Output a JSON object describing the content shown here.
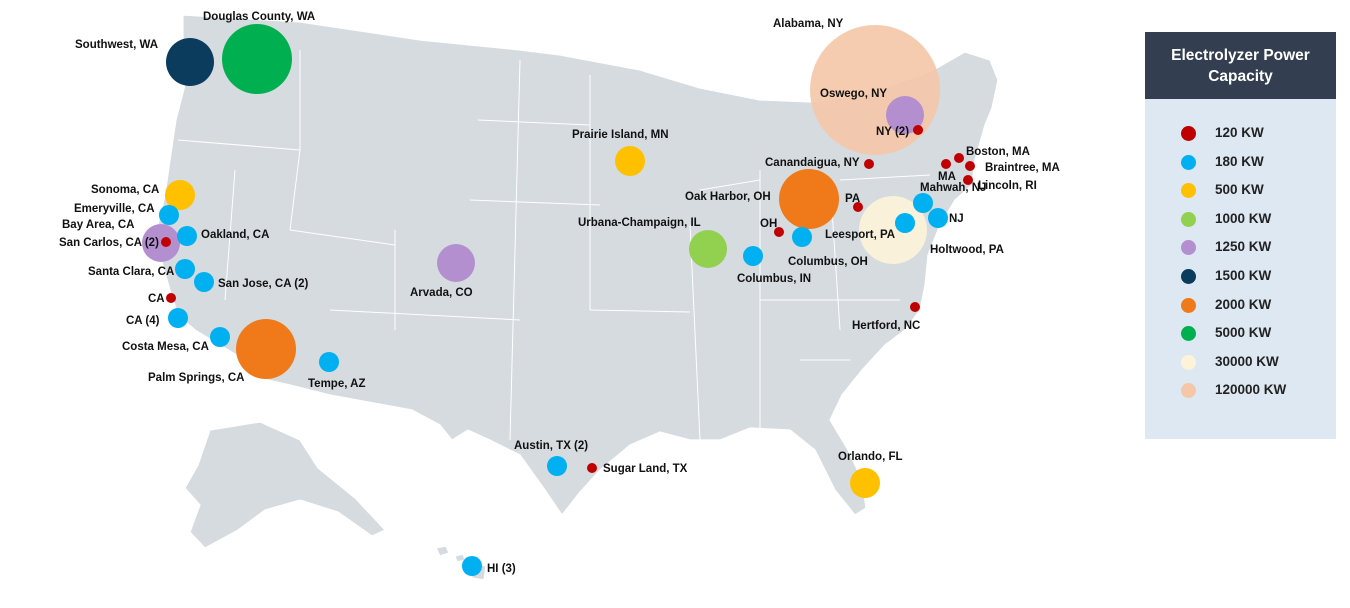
{
  "legend": {
    "title": "Electrolyzer Power Capacity",
    "items": [
      {
        "label": "120 KW",
        "color": "#c00000"
      },
      {
        "label": "180 KW",
        "color": "#00b0f0"
      },
      {
        "label": "500 KW",
        "color": "#ffc000"
      },
      {
        "label": "1000 KW",
        "color": "#92d050"
      },
      {
        "label": "1250 KW",
        "color": "#b48fd0"
      },
      {
        "label": "1500 KW",
        "color": "#0b3c5d"
      },
      {
        "label": "2000 KW",
        "color": "#f07a1a"
      },
      {
        "label": "5000 KW",
        "color": "#00b050"
      },
      {
        "label": "30000 KW",
        "color": "#fdf3d9"
      },
      {
        "label": "120000 KW",
        "color": "#f5c7a8"
      }
    ]
  },
  "sites": [
    {
      "label": "Douglas County, WA",
      "capacity_kw": 5000
    },
    {
      "label": "Southwest, WA",
      "capacity_kw": 1500
    },
    {
      "label": "Alabama, NY",
      "capacity_kw": 120000
    },
    {
      "label": "Oswego, NY",
      "capacity_kw": 1250
    },
    {
      "label": "NY (2)",
      "capacity_kw": 120
    },
    {
      "label": "Boston, MA",
      "capacity_kw": 120
    },
    {
      "label": "Braintree, MA",
      "capacity_kw": 120
    },
    {
      "label": "MA",
      "capacity_kw": 120
    },
    {
      "label": "Lincoln, RI",
      "capacity_kw": 120
    },
    {
      "label": "Canandaigua, NY",
      "capacity_kw": 120
    },
    {
      "label": "Prairie Island, MN",
      "capacity_kw": 500
    },
    {
      "label": "Oak Harbor, OH",
      "capacity_kw": 2000
    },
    {
      "label": "PA",
      "capacity_kw": 120
    },
    {
      "label": "Mahwah, NJ",
      "capacity_kw": 180
    },
    {
      "label": "NJ",
      "capacity_kw": 180
    },
    {
      "label": "Leesport, PA",
      "capacity_kw": 180
    },
    {
      "label": "Holtwood, PA",
      "capacity_kw": 30000
    },
    {
      "label": "Urbana-Champaign, IL",
      "capacity_kw": 1000
    },
    {
      "label": "OH",
      "capacity_kw": 120
    },
    {
      "label": "Columbus, OH",
      "capacity_kw": 180
    },
    {
      "label": "Columbus, IN",
      "capacity_kw": 180
    },
    {
      "label": "Hertford, NC",
      "capacity_kw": 120
    },
    {
      "label": "Sonoma, CA",
      "capacity_kw": 500
    },
    {
      "label": "Emeryville, CA",
      "capacity_kw": 180
    },
    {
      "label": "Bay Area, CA",
      "capacity_kw": 1250
    },
    {
      "label": "San Carlos, CA (2)",
      "capacity_kw": 120
    },
    {
      "label": "Oakland, CA",
      "capacity_kw": 180
    },
    {
      "label": "Santa Clara, CA",
      "capacity_kw": 180
    },
    {
      "label": "San Jose, CA (2)",
      "capacity_kw": 180
    },
    {
      "label": "CA",
      "capacity_kw": 120
    },
    {
      "label": "CA (4)",
      "capacity_kw": 180
    },
    {
      "label": "Costa Mesa, CA",
      "capacity_kw": 180
    },
    {
      "label": "Palm Springs, CA",
      "capacity_kw": 2000
    },
    {
      "label": "Tempe, AZ",
      "capacity_kw": 180
    },
    {
      "label": "Arvada, CO",
      "capacity_kw": 1250
    },
    {
      "label": "Austin, TX (2)",
      "capacity_kw": 180
    },
    {
      "label": "Sugar Land, TX",
      "capacity_kw": 120
    },
    {
      "label": "Orlando, FL",
      "capacity_kw": 500
    },
    {
      "label": "HI (3)",
      "capacity_kw": 180
    }
  ]
}
